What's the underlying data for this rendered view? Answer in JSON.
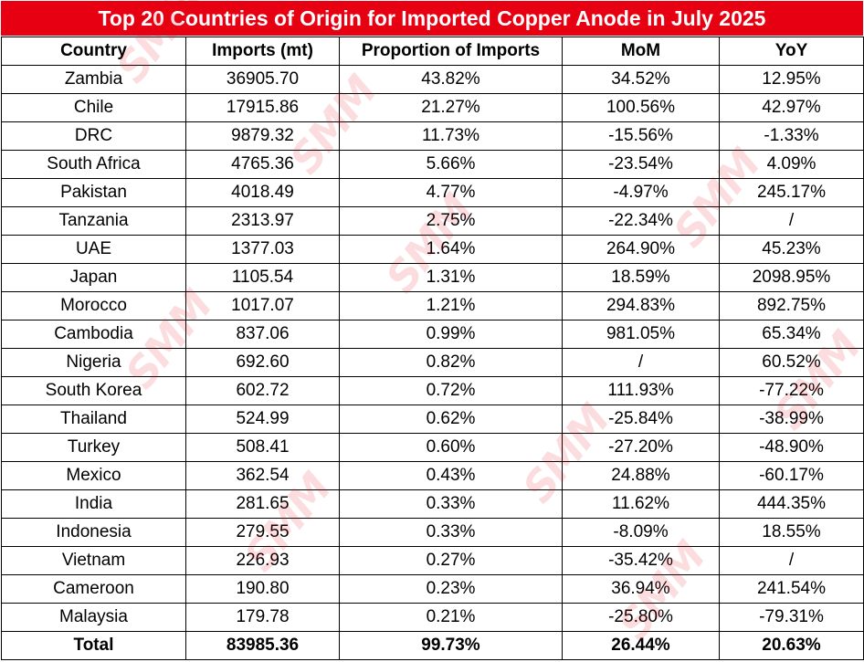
{
  "colors": {
    "title_bg": "#e60012",
    "title_text": "#ffffff",
    "watermark": "#e60012",
    "grid": "#000000"
  },
  "title": "Top 20 Countries of Origin for Imported Copper Anode in July 2025",
  "watermark_text": "SMM",
  "chart_data": {
    "type": "table",
    "title": "Top 20 Countries of Origin for Imported Copper Anode in July 2025",
    "columns": [
      "Country",
      "Imports (mt)",
      "Proportion of Imports",
      "MoM",
      "YoY"
    ],
    "rows": [
      [
        "Zambia",
        "36905.70",
        "43.82%",
        "34.52%",
        "12.95%"
      ],
      [
        "Chile",
        "17915.86",
        "21.27%",
        "100.56%",
        "42.97%"
      ],
      [
        "DRC",
        "9879.32",
        "11.73%",
        "-15.56%",
        "-1.33%"
      ],
      [
        "South Africa",
        "4765.36",
        "5.66%",
        "-23.54%",
        "4.09%"
      ],
      [
        "Pakistan",
        "4018.49",
        "4.77%",
        "-4.97%",
        "245.17%"
      ],
      [
        "Tanzania",
        "2313.97",
        "2.75%",
        "-22.34%",
        "/"
      ],
      [
        "UAE",
        "1377.03",
        "1.64%",
        "264.90%",
        "45.23%"
      ],
      [
        "Japan",
        "1105.54",
        "1.31%",
        "18.59%",
        "2098.95%"
      ],
      [
        "Morocco",
        "1017.07",
        "1.21%",
        "294.83%",
        "892.75%"
      ],
      [
        "Cambodia",
        "837.06",
        "0.99%",
        "981.05%",
        "65.34%"
      ],
      [
        "Nigeria",
        "692.60",
        "0.82%",
        "/",
        "60.52%"
      ],
      [
        "South Korea",
        "602.72",
        "0.72%",
        "111.93%",
        "-77.22%"
      ],
      [
        "Thailand",
        "524.99",
        "0.62%",
        "-25.84%",
        "-38.99%"
      ],
      [
        "Turkey",
        "508.41",
        "0.60%",
        "-27.20%",
        "-48.90%"
      ],
      [
        "Mexico",
        "362.54",
        "0.43%",
        "24.88%",
        "-60.17%"
      ],
      [
        "India",
        "281.65",
        "0.33%",
        "11.62%",
        "444.35%"
      ],
      [
        "Indonesia",
        "279.55",
        "0.33%",
        "-8.09%",
        "18.55%"
      ],
      [
        "Vietnam",
        "226.93",
        "0.27%",
        "-35.42%",
        "/"
      ],
      [
        "Cameroon",
        "190.80",
        "0.23%",
        "36.94%",
        "241.54%"
      ],
      [
        "Malaysia",
        "179.78",
        "0.21%",
        "-25.80%",
        "-79.31%"
      ]
    ],
    "total": [
      "Total",
      "83985.36",
      "99.73%",
      "26.44%",
      "20.63%"
    ]
  }
}
